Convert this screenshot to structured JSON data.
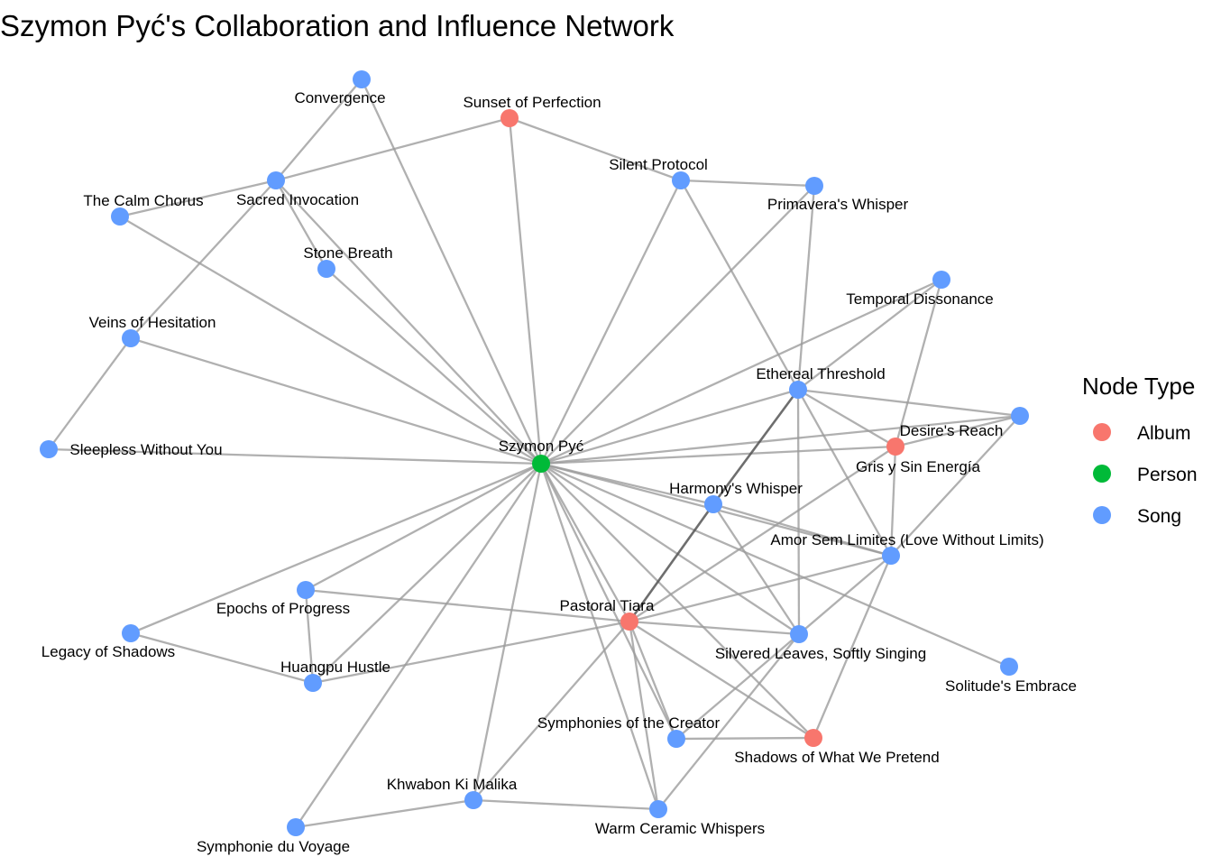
{
  "title": "Szymon Pyć's Collaboration and Influence Network",
  "legend": {
    "title": "Node Type",
    "items": [
      {
        "label": "Album",
        "color": "#F8766D"
      },
      {
        "label": "Person",
        "color": "#00BA38"
      },
      {
        "label": "Song",
        "color": "#619CFF"
      }
    ]
  },
  "colors": {
    "Album": "#F8766D",
    "Person": "#00BA38",
    "Song": "#619CFF",
    "edge": "#9a9a9a"
  },
  "nodes": [
    {
      "id": "szymon",
      "label": "Szymon Pyć",
      "type": "Person"
    },
    {
      "id": "sunset",
      "label": "Sunset of Perfection",
      "type": "Album"
    },
    {
      "id": "desires",
      "label": "Desire's Reach",
      "type": "Album"
    },
    {
      "id": "pastoral",
      "label": "Pastoral Tiara",
      "type": "Album"
    },
    {
      "id": "shadows",
      "label": "Shadows of What We Pretend",
      "type": "Album"
    },
    {
      "id": "convergence",
      "label": "Convergence",
      "type": "Song"
    },
    {
      "id": "sacred",
      "label": "Sacred Invocation",
      "type": "Song"
    },
    {
      "id": "calm",
      "label": "The Calm Chorus",
      "type": "Song"
    },
    {
      "id": "stone",
      "label": "Stone Breath",
      "type": "Song"
    },
    {
      "id": "veins",
      "label": "Veins of Hesitation",
      "type": "Song"
    },
    {
      "id": "sleepless",
      "label": "Sleepless Without You",
      "type": "Song"
    },
    {
      "id": "silent",
      "label": "Silent Protocol",
      "type": "Song"
    },
    {
      "id": "primavera",
      "label": "Primavera's Whisper",
      "type": "Song"
    },
    {
      "id": "temporal",
      "label": "Temporal Dissonance",
      "type": "Song"
    },
    {
      "id": "ethereal",
      "label": "Ethereal Threshold",
      "type": "Song"
    },
    {
      "id": "gris",
      "label": "Gris y Sin Energía",
      "type": "Song"
    },
    {
      "id": "harmony",
      "label": "Harmony's Whisper",
      "type": "Song"
    },
    {
      "id": "amor",
      "label": "Amor Sem Limites (Love Without Limits)",
      "type": "Song"
    },
    {
      "id": "silvered",
      "label": "Silvered Leaves, Softly Singing",
      "type": "Song"
    },
    {
      "id": "solitude",
      "label": "Solitude's Embrace",
      "type": "Song"
    },
    {
      "id": "epochs",
      "label": "Epochs of Progress",
      "type": "Song"
    },
    {
      "id": "legacy",
      "label": "Legacy of Shadows",
      "type": "Song"
    },
    {
      "id": "huangpu",
      "label": "Huangpu Hustle",
      "type": "Song"
    },
    {
      "id": "symphonies",
      "label": "Symphonies of the Creator",
      "type": "Song"
    },
    {
      "id": "khwabon",
      "label": "Khwabon Ki Malika",
      "type": "Song"
    },
    {
      "id": "warm",
      "label": "Warm Ceramic Whispers",
      "type": "Song"
    },
    {
      "id": "symphonie",
      "label": "Symphonie du Voyage",
      "type": "Song"
    }
  ],
  "edges": [
    [
      "szymon",
      "convergence"
    ],
    [
      "szymon",
      "sunset"
    ],
    [
      "szymon",
      "silent"
    ],
    [
      "szymon",
      "primavera"
    ],
    [
      "szymon",
      "temporal"
    ],
    [
      "szymon",
      "ethereal"
    ],
    [
      "szymon",
      "desires"
    ],
    [
      "szymon",
      "gris"
    ],
    [
      "szymon",
      "harmony"
    ],
    [
      "szymon",
      "amor"
    ],
    [
      "szymon",
      "silvered"
    ],
    [
      "szymon",
      "solitude"
    ],
    [
      "szymon",
      "shadows"
    ],
    [
      "szymon",
      "symphonies"
    ],
    [
      "szymon",
      "warm"
    ],
    [
      "szymon",
      "pastoral"
    ],
    [
      "szymon",
      "khwabon"
    ],
    [
      "szymon",
      "symphonie"
    ],
    [
      "szymon",
      "huangpu"
    ],
    [
      "szymon",
      "legacy"
    ],
    [
      "szymon",
      "epochs"
    ],
    [
      "szymon",
      "sleepless"
    ],
    [
      "szymon",
      "veins"
    ],
    [
      "szymon",
      "calm"
    ],
    [
      "szymon",
      "stone"
    ],
    [
      "szymon",
      "sacred"
    ],
    [
      "convergence",
      "sacred"
    ],
    [
      "sacred",
      "calm"
    ],
    [
      "sacred",
      "sunset"
    ],
    [
      "sacred",
      "stone"
    ],
    [
      "sacred",
      "veins"
    ],
    [
      "veins",
      "sleepless"
    ],
    [
      "sunset",
      "silent"
    ],
    [
      "silent",
      "primavera"
    ],
    [
      "silent",
      "ethereal"
    ],
    [
      "primavera",
      "ethereal"
    ],
    [
      "temporal",
      "ethereal"
    ],
    [
      "temporal",
      "desires"
    ],
    [
      "ethereal",
      "gris"
    ],
    [
      "ethereal",
      "desires"
    ],
    [
      "ethereal",
      "amor"
    ],
    [
      "ethereal",
      "silvered"
    ],
    [
      "gris",
      "desires"
    ],
    [
      "gris",
      "amor"
    ],
    [
      "desires",
      "amor"
    ],
    [
      "desires",
      "pastoral"
    ],
    [
      "harmony",
      "amor"
    ],
    [
      "harmony",
      "silvered"
    ],
    [
      "amor",
      "pastoral"
    ],
    [
      "amor",
      "silvered"
    ],
    [
      "amor",
      "shadows"
    ],
    [
      "silvered",
      "pastoral"
    ],
    [
      "silvered",
      "symphonies"
    ],
    [
      "silvered",
      "warm"
    ],
    [
      "pastoral",
      "epochs"
    ],
    [
      "pastoral",
      "huangpu"
    ],
    [
      "pastoral",
      "symphonies"
    ],
    [
      "pastoral",
      "shadows"
    ],
    [
      "pastoral",
      "warm"
    ],
    [
      "pastoral",
      "khwabon"
    ],
    [
      "symphonies",
      "shadows"
    ],
    [
      "khwabon",
      "warm"
    ],
    [
      "khwabon",
      "symphonie"
    ],
    [
      "epochs",
      "huangpu"
    ],
    [
      "legacy",
      "huangpu"
    ]
  ],
  "strong_edges": [
    [
      "harmony",
      "pastoral"
    ],
    [
      "harmony",
      "ethereal"
    ]
  ]
}
